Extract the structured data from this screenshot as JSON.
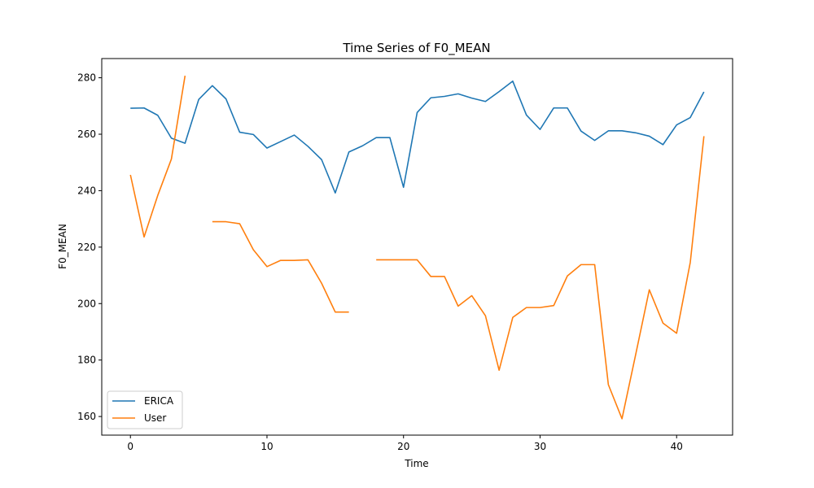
{
  "chart_data": {
    "type": "line",
    "title": "Time Series of F0_MEAN",
    "xlabel": "Time",
    "ylabel": "F0_MEAN",
    "xlim": [
      -2.1,
      44.1
    ],
    "ylim": [
      153.4,
      286.8
    ],
    "xticks": [
      0,
      10,
      20,
      30,
      40
    ],
    "yticks": [
      160,
      180,
      200,
      220,
      240,
      260,
      280
    ],
    "grid": false,
    "legend_position": "lower-left",
    "series": [
      {
        "name": "ERICA",
        "color": "#1f77b4",
        "x": [
          0,
          1,
          2,
          3,
          4,
          5,
          6,
          7,
          8,
          9,
          10,
          11,
          12,
          13,
          14,
          15,
          16,
          17,
          18,
          19,
          20,
          21,
          22,
          23,
          24,
          25,
          26,
          27,
          28,
          29,
          30,
          31,
          32,
          33,
          34,
          35,
          36,
          37,
          38,
          39,
          40,
          41,
          42
        ],
        "y": [
          269.2,
          269.3,
          266.7,
          258.6,
          256.8,
          272.3,
          277.2,
          272.5,
          260.7,
          259.9,
          255.1,
          257.4,
          259.7,
          255.7,
          251.0,
          239.2,
          253.7,
          255.9,
          258.8,
          258.8,
          241.2,
          267.7,
          272.9,
          273.4,
          274.3,
          272.8,
          271.6,
          275.1,
          278.8,
          266.8,
          261.7,
          269.3,
          269.3,
          261.1,
          257.8,
          261.2,
          261.2,
          260.5,
          259.3,
          256.3,
          263.3,
          265.9,
          275.0
        ]
      },
      {
        "name": "User",
        "color": "#ff7f0e",
        "x": [
          0,
          1,
          2,
          3,
          4,
          5,
          6,
          7,
          8,
          9,
          10,
          11,
          12,
          13,
          14,
          15,
          16,
          17,
          18,
          19,
          20,
          21,
          22,
          23,
          24,
          25,
          26,
          27,
          28,
          29,
          30,
          31,
          32,
          33,
          34,
          35,
          36,
          37,
          38,
          39,
          40,
          41,
          42
        ],
        "y": [
          245.6,
          223.6,
          238.3,
          251.2,
          280.7,
          null,
          229.0,
          229.0,
          228.3,
          219.1,
          213.1,
          215.3,
          215.3,
          215.5,
          207.2,
          197.0,
          197.0,
          null,
          215.5,
          215.5,
          215.5,
          215.5,
          209.6,
          209.6,
          199.1,
          202.8,
          195.7,
          176.4,
          195.1,
          198.6,
          198.6,
          199.3,
          209.8,
          213.8,
          213.8,
          171.3,
          159.2,
          181.9,
          204.9,
          193.1,
          189.5,
          214.6,
          259.3
        ]
      }
    ]
  }
}
